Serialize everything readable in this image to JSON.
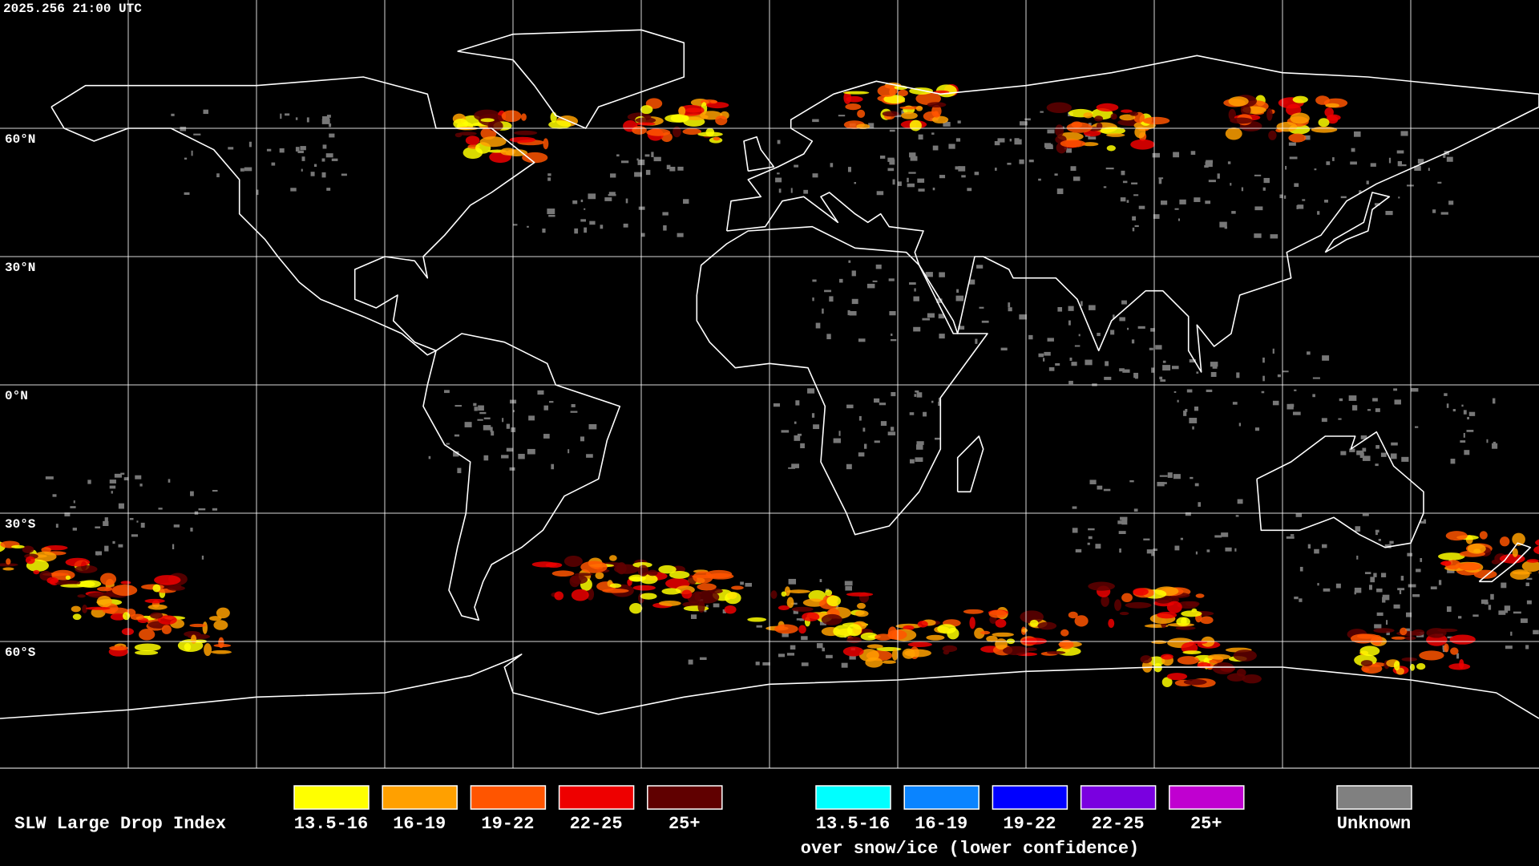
{
  "header": {
    "timestamp": "2025.256 21:00 UTC"
  },
  "map": {
    "lat_labels": [
      "60°N",
      "30°N",
      "0°N",
      "30°S",
      "60°S"
    ]
  },
  "legend": {
    "title": "SLW Large Drop Index",
    "liquid": [
      {
        "label": "13.5-16",
        "color": "#ffff00"
      },
      {
        "label": "16-19",
        "color": "#ffa000"
      },
      {
        "label": "19-22",
        "color": "#ff5500"
      },
      {
        "label": "22-25",
        "color": "#ee0000"
      },
      {
        "label": "25+",
        "color": "#600000"
      }
    ],
    "snow_ice": [
      {
        "label": "13.5-16",
        "color": "#00ffff"
      },
      {
        "label": "16-19",
        "color": "#0a84ff"
      },
      {
        "label": "19-22",
        "color": "#0000ff"
      },
      {
        "label": "22-25",
        "color": "#7a00e0"
      },
      {
        "label": "25+",
        "color": "#c000d0"
      }
    ],
    "snow_ice_caption": "over snow/ice (lower confidence)",
    "unknown": {
      "label": "Unknown",
      "color": "#808080"
    }
  }
}
